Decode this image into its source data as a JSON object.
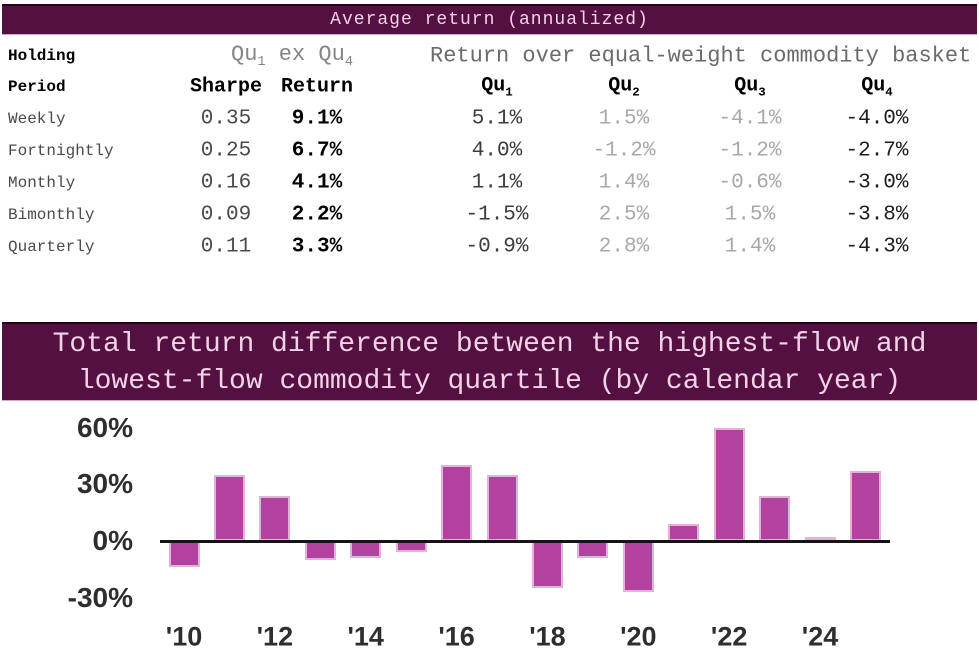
{
  "table": {
    "title": "Average return (annualized)",
    "header": {
      "left_line1": "Holding",
      "left_line2": "Period",
      "group_mid": "Qu_1 ex Qu_4",
      "group_right": "Return over equal-weight commodity basket",
      "columns": [
        "Sharpe",
        "Return",
        "Qu_1",
        "Qu_2",
        "Qu_3",
        "Qu_4"
      ]
    },
    "rows": [
      {
        "label": "Weekly",
        "values": [
          "0.35",
          "9.1%",
          "5.1%",
          "1.5%",
          "-4.1%",
          "-4.0%"
        ]
      },
      {
        "label": "Fortnightly",
        "values": [
          "0.25",
          "6.7%",
          "4.0%",
          "-1.2%",
          "-1.2%",
          "-2.7%"
        ]
      },
      {
        "label": "Monthly",
        "values": [
          "0.16",
          "4.1%",
          "1.1%",
          "1.4%",
          "-0.6%",
          "-3.0%"
        ]
      },
      {
        "label": "Bimonthly",
        "values": [
          "0.09",
          "2.2%",
          "-1.5%",
          "2.5%",
          "1.5%",
          "-3.8%"
        ]
      },
      {
        "label": "Quarterly",
        "values": [
          "0.11",
          "3.3%",
          "-0.9%",
          "2.8%",
          "1.4%",
          "-4.3%"
        ]
      }
    ]
  },
  "chart_title": {
    "line1": "Total return difference between the highest-flow and",
    "line2": "lowest-flow commodity quartile (by calendar year)"
  },
  "chart_data": {
    "type": "bar",
    "title": "Total return difference between the highest-flow and lowest-flow commodity quartile (by calendar year)",
    "x": [
      2010,
      2011,
      2012,
      2013,
      2014,
      2015,
      2016,
      2017,
      2018,
      2019,
      2020,
      2021,
      2022,
      2023,
      2024,
      2025
    ],
    "values": [
      -14,
      35,
      24,
      -10,
      -9,
      -6,
      40,
      35,
      -25,
      -9,
      -27,
      9,
      60,
      24,
      2,
      37
    ],
    "unit": "percent",
    "x_tick_labels": [
      "'10",
      "'12",
      "'14",
      "'16",
      "'18",
      "'20",
      "'22",
      "'24"
    ],
    "x_tick_every": 2,
    "y_ticks": [
      {
        "label": "60%",
        "value": 60
      },
      {
        "label": "30%",
        "value": 30
      },
      {
        "label": "0%",
        "value": 0
      },
      {
        "label": "-30%",
        "value": -30
      }
    ],
    "ylim": [
      -45,
      75
    ],
    "grid": false,
    "legend": null,
    "bar_color": "#b2429e",
    "bar_edge_color": "#e0b4d8",
    "axis_color": "#141414"
  },
  "colors": {
    "band_background": "#531040",
    "band_text": "#f1d2e7",
    "emph_text": "#000000",
    "muted_text": "#a8a8a8"
  }
}
